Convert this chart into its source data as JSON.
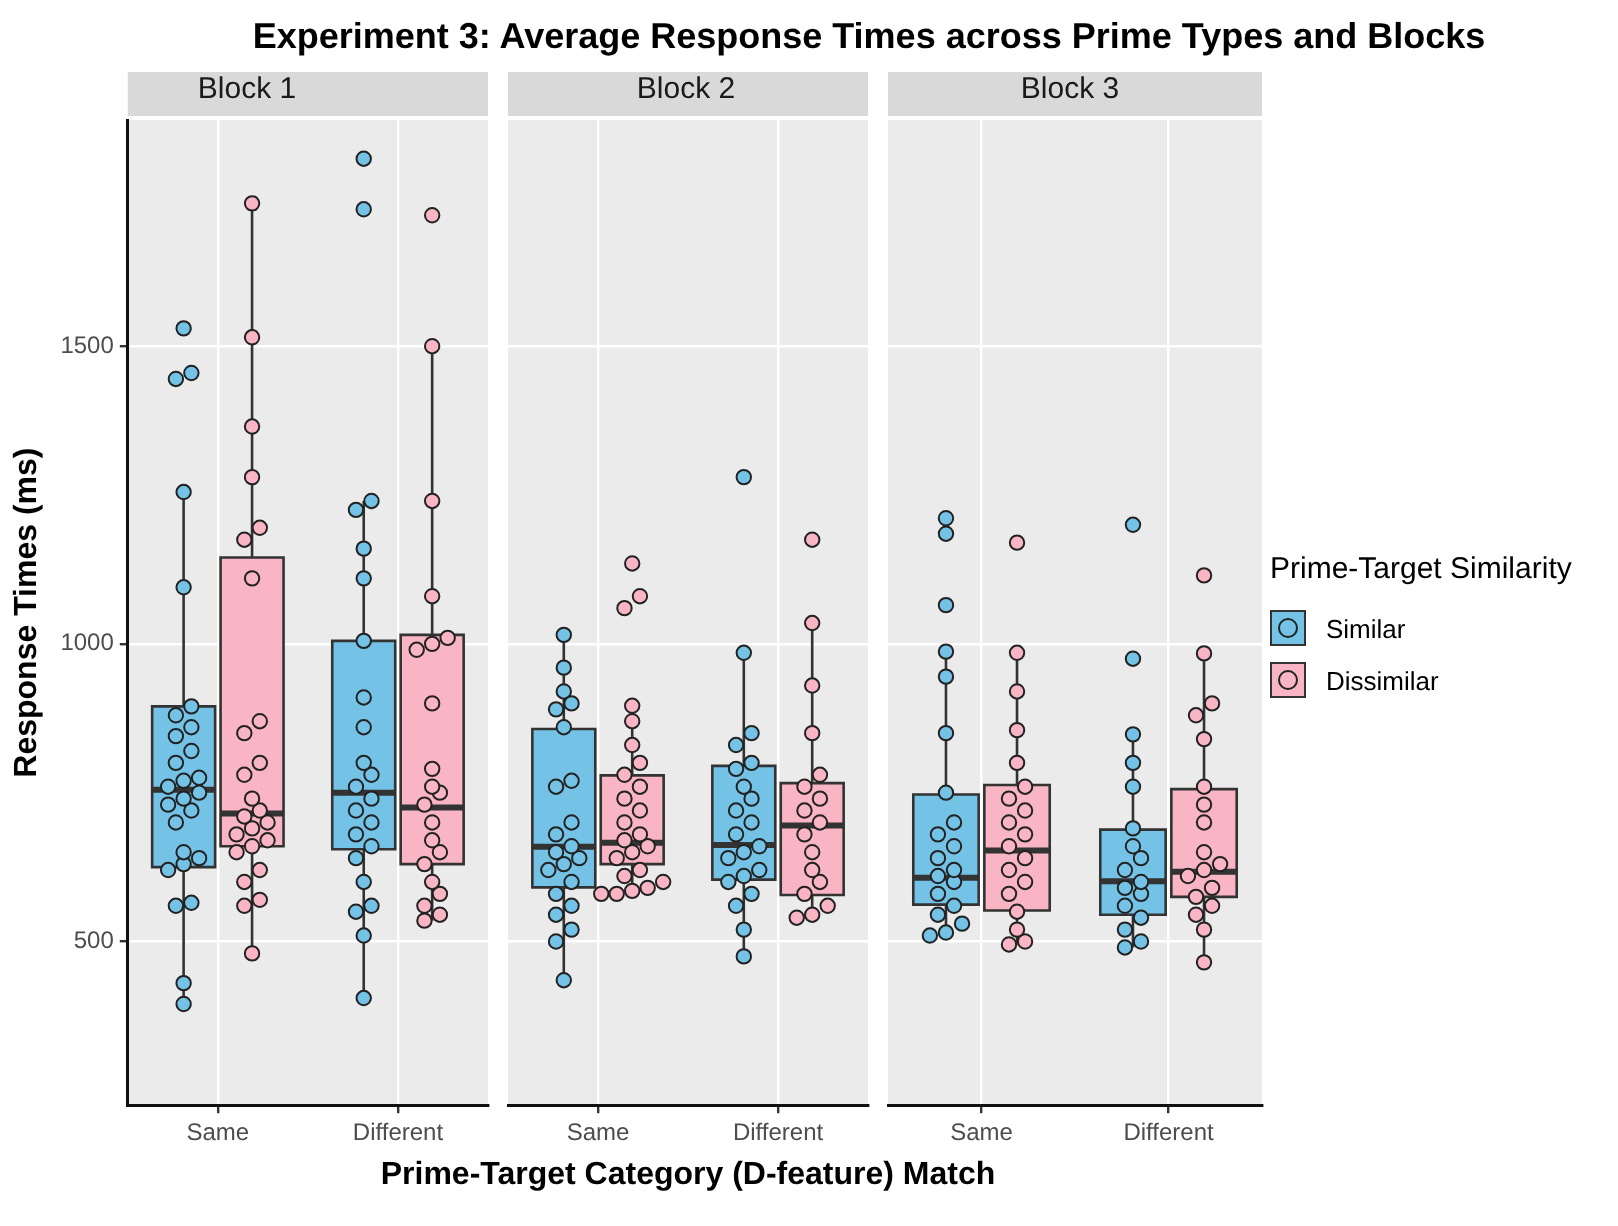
{
  "chart_data": [
    {
      "type": "box",
      "title": "Experiment 3: Average Response Times across Prime Types and Blocks",
      "subtitle": "Block 1",
      "ylabel": "Response Times (ms)",
      "categories": [
        "Same",
        "Different"
      ],
      "ylim": [
        225,
        1880
      ],
      "yticks": [
        500,
        1000,
        1500
      ],
      "grid": true,
      "marker": "circle",
      "series": [
        {
          "color": "#74c3e7",
          "boxes": [
            {
              "low": 395,
              "q1": 625,
              "median": 755,
              "q3": 895,
              "high": 1255
            },
            {
              "low": 405,
              "q1": 655,
              "median": 750,
              "q3": 1005,
              "high": 1240
            }
          ]
        },
        {
          "color": "#f9b5c3",
          "boxes": [
            {
              "low": 480,
              "q1": 660,
              "median": 715,
              "q3": 1145,
              "high": 1740
            },
            {
              "low": 535,
              "q1": 630,
              "median": 725,
              "q3": 1015,
              "high": 1500
            }
          ]
        },
        {
          "type": "scatter",
          "color": "#74c3e7",
          "x": [
            "Same",
            "Same",
            "Same",
            "Same",
            "Same",
            "Same",
            "Same",
            "Same",
            "Same",
            "Same",
            "Same",
            "Same",
            "Same",
            "Same",
            "Same",
            "Same",
            "Same",
            "Same",
            "Same",
            "Same",
            "Same",
            "Same",
            "Same",
            "Same",
            "Same",
            "Same",
            "Same",
            "Different",
            "Different",
            "Different",
            "Different",
            "Different",
            "Different",
            "Different",
            "Different",
            "Different",
            "Different",
            "Different",
            "Different",
            "Different",
            "Different",
            "Different",
            "Different",
            "Different",
            "Different",
            "Different",
            "Different",
            "Different",
            "Different",
            "Different"
          ],
          "values": [
            395,
            430,
            560,
            565,
            620,
            630,
            640,
            650,
            700,
            720,
            730,
            740,
            750,
            760,
            770,
            775,
            800,
            820,
            845,
            860,
            880,
            895,
            1095,
            1255,
            1445,
            1455,
            1530,
            405,
            510,
            550,
            560,
            600,
            640,
            660,
            680,
            700,
            720,
            740,
            760,
            780,
            800,
            860,
            910,
            1005,
            1110,
            1160,
            1225,
            1240,
            1730,
            1815
          ]
        },
        {
          "type": "scatter",
          "color": "#f9b5c3",
          "x": [
            "Same",
            "Same",
            "Same",
            "Same",
            "Same",
            "Same",
            "Same",
            "Same",
            "Same",
            "Same",
            "Same",
            "Same",
            "Same",
            "Same",
            "Same",
            "Same",
            "Same",
            "Same",
            "Same",
            "Same",
            "Same",
            "Same",
            "Same",
            "Same",
            "Same",
            "Different",
            "Different",
            "Different",
            "Different",
            "Different",
            "Different",
            "Different",
            "Different",
            "Different",
            "Different",
            "Different",
            "Different",
            "Different",
            "Different",
            "Different",
            "Different",
            "Different",
            "Different",
            "Different",
            "Different",
            "Different"
          ],
          "values": [
            480,
            560,
            570,
            600,
            620,
            650,
            660,
            670,
            680,
            690,
            700,
            710,
            720,
            740,
            780,
            800,
            850,
            870,
            1110,
            1175,
            1195,
            1280,
            1365,
            1515,
            1740,
            535,
            545,
            560,
            580,
            600,
            630,
            650,
            670,
            700,
            730,
            750,
            760,
            790,
            900,
            990,
            1000,
            1010,
            1080,
            1240,
            1500,
            1720
          ]
        }
      ]
    },
    {
      "type": "box",
      "subtitle": "Block 2",
      "xlabel": "Prime-Target Category (D-feature) Match",
      "categories": [
        "Same",
        "Different"
      ],
      "ylim": [
        225,
        1880
      ],
      "yticks": [
        500,
        1000,
        1500
      ],
      "tick_labels": "x",
      "grid": true,
      "marker": "circle",
      "series": [
        {
          "color": "#74c3e7",
          "boxes": [
            {
              "low": 435,
              "q1": 591,
              "median": 659,
              "q3": 857,
              "high": 1015
            },
            {
              "low": 475,
              "q1": 604,
              "median": 662,
              "q3": 795,
              "high": 985
            }
          ]
        },
        {
          "color": "#f9b5c3",
          "boxes": [
            {
              "low": 580,
              "q1": 630,
              "median": 666,
              "q3": 779,
              "high": 896
            },
            {
              "low": 540,
              "q1": 578,
              "median": 695,
              "q3": 766,
              "high": 1035
            }
          ]
        },
        {
          "type": "scatter",
          "color": "#74c3e7",
          "x": [
            "Same",
            "Same",
            "Same",
            "Same",
            "Same",
            "Same",
            "Same",
            "Same",
            "Same",
            "Same",
            "Same",
            "Same",
            "Same",
            "Same",
            "Same",
            "Same",
            "Same",
            "Same",
            "Same",
            "Same",
            "Same",
            "Same",
            "Different",
            "Different",
            "Different",
            "Different",
            "Different",
            "Different",
            "Different",
            "Different",
            "Different",
            "Different",
            "Different",
            "Different",
            "Different",
            "Different",
            "Different",
            "Different",
            "Different",
            "Different",
            "Different",
            "Different",
            "Different"
          ],
          "values": [
            435,
            500,
            520,
            545,
            560,
            580,
            600,
            620,
            630,
            640,
            650,
            660,
            680,
            700,
            760,
            770,
            860,
            890,
            900,
            920,
            960,
            1015,
            475,
            520,
            560,
            580,
            600,
            610,
            620,
            640,
            650,
            660,
            680,
            700,
            720,
            740,
            760,
            790,
            800,
            830,
            850,
            985,
            1280
          ]
        },
        {
          "type": "scatter",
          "color": "#f9b5c3",
          "x": [
            "Same",
            "Same",
            "Same",
            "Same",
            "Same",
            "Same",
            "Same",
            "Same",
            "Same",
            "Same",
            "Same",
            "Same",
            "Same",
            "Same",
            "Same",
            "Same",
            "Same",
            "Same",
            "Same",
            "Same",
            "Same",
            "Same",
            "Same",
            "Same",
            "Different",
            "Different",
            "Different",
            "Different",
            "Different",
            "Different",
            "Different",
            "Different",
            "Different",
            "Different",
            "Different",
            "Different",
            "Different",
            "Different",
            "Different",
            "Different",
            "Different"
          ],
          "values": [
            580,
            580,
            585,
            590,
            600,
            610,
            620,
            640,
            650,
            660,
            670,
            680,
            700,
            720,
            740,
            760,
            780,
            800,
            830,
            870,
            896,
            1060,
            1080,
            1135,
            540,
            545,
            560,
            580,
            600,
            620,
            650,
            680,
            700,
            720,
            740,
            760,
            780,
            850,
            930,
            1035,
            1175
          ]
        }
      ]
    },
    {
      "type": "box",
      "subtitle": "Block 3",
      "legend": "right",
      "legend_title": "Prime-Target Similarity",
      "categories": [
        "Same",
        "Different"
      ],
      "ylim": [
        225,
        1880
      ],
      "yticks": [
        500,
        1000,
        1500
      ],
      "tick_labels": "x",
      "grid": true,
      "marker": "circle",
      "series": [
        {
          "name": "Similar",
          "color": "#74c3e7",
          "boxes": [
            {
              "low": 510,
              "q1": 562,
              "median": 607,
              "q3": 747,
              "high": 987
            },
            {
              "low": 490,
              "q1": 545,
              "median": 601,
              "q3": 688,
              "high": 848
            }
          ]
        },
        {
          "name": "Dissimilar",
          "color": "#f9b5c3",
          "boxes": [
            {
              "low": 495,
              "q1": 552,
              "median": 653,
              "q3": 763,
              "high": 985
            },
            {
              "low": 465,
              "q1": 575,
              "median": 617,
              "q3": 756,
              "high": 984
            }
          ]
        },
        {
          "type": "scatter",
          "color": "#74c3e7",
          "x": [
            "Same",
            "Same",
            "Same",
            "Same",
            "Same",
            "Same",
            "Same",
            "Same",
            "Same",
            "Same",
            "Same",
            "Same",
            "Same",
            "Same",
            "Same",
            "Same",
            "Same",
            "Same",
            "Same",
            "Same",
            "Different",
            "Different",
            "Different",
            "Different",
            "Different",
            "Different",
            "Different",
            "Different",
            "Different",
            "Different",
            "Different",
            "Different",
            "Different",
            "Different",
            "Different",
            "Different",
            "Different"
          ],
          "values": [
            510,
            515,
            530,
            545,
            560,
            580,
            600,
            610,
            620,
            640,
            660,
            680,
            700,
            750,
            850,
            945,
            987,
            1065,
            1185,
            1211,
            490,
            500,
            520,
            540,
            560,
            580,
            590,
            600,
            620,
            640,
            660,
            690,
            760,
            800,
            848,
            975,
            1200
          ]
        },
        {
          "type": "scatter",
          "color": "#f9b5c3",
          "x": [
            "Same",
            "Same",
            "Same",
            "Same",
            "Same",
            "Same",
            "Same",
            "Same",
            "Same",
            "Same",
            "Same",
            "Same",
            "Same",
            "Same",
            "Same",
            "Same",
            "Same",
            "Same",
            "Same",
            "Different",
            "Different",
            "Different",
            "Different",
            "Different",
            "Different",
            "Different",
            "Different",
            "Different",
            "Different",
            "Different",
            "Different",
            "Different",
            "Different",
            "Different",
            "Different",
            "Different",
            "Different"
          ],
          "values": [
            495,
            500,
            520,
            550,
            580,
            600,
            620,
            640,
            660,
            680,
            700,
            720,
            740,
            760,
            800,
            855,
            920,
            985,
            1170,
            465,
            520,
            545,
            560,
            575,
            590,
            610,
            620,
            630,
            650,
            700,
            730,
            760,
            840,
            880,
            900,
            984,
            1115
          ]
        }
      ]
    }
  ]
}
